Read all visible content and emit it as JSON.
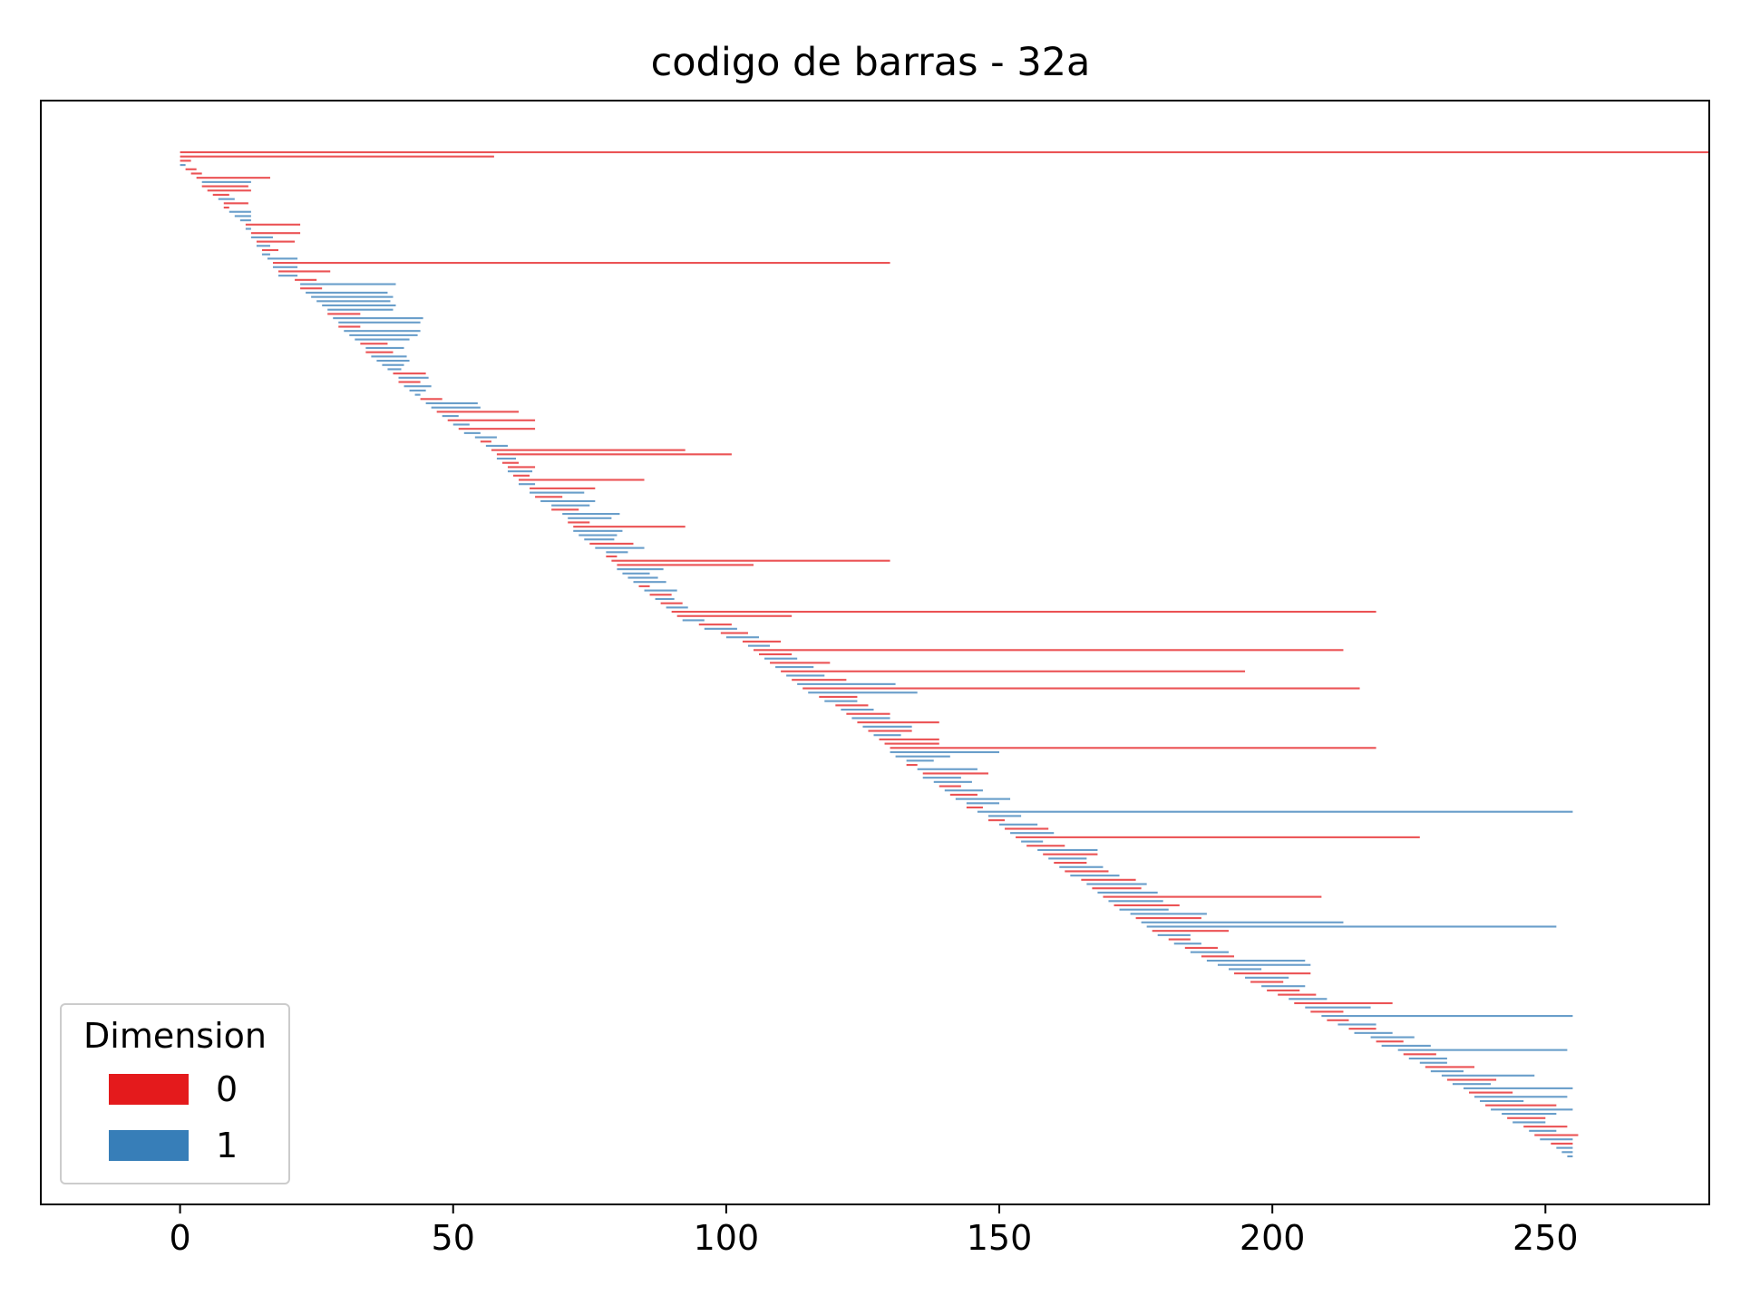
{
  "chart_data": {
    "type": "barcode",
    "title": "codigo de barras - 32a",
    "xlabel": "",
    "ylabel": "",
    "xlim": [
      -25.5,
      280
    ],
    "xticks": [
      0,
      50,
      100,
      150,
      200,
      250
    ],
    "xtick_labels": [
      "0",
      "50",
      "100",
      "150",
      "200",
      "250"
    ],
    "grid": false,
    "legend": {
      "title": "Dimension",
      "placement": "lower-left",
      "entries": [
        {
          "label": "0",
          "color": "#e41a1c"
        },
        {
          "label": "1",
          "color": "#377eb8"
        }
      ]
    },
    "series": [
      {
        "name": "0",
        "dimension": 0,
        "color": "#e41a1c",
        "intervals": [
          [
            0,
            280
          ],
          [
            0,
            57.5
          ],
          [
            0,
            2
          ],
          [
            1,
            3
          ],
          [
            2,
            4
          ],
          [
            3,
            16.5
          ],
          [
            4,
            12.5
          ],
          [
            5,
            13
          ],
          [
            6,
            9
          ],
          [
            8,
            12.5
          ],
          [
            8,
            9
          ],
          [
            12,
            22
          ],
          [
            13,
            22
          ],
          [
            14,
            21
          ],
          [
            15,
            18
          ],
          [
            17,
            130
          ],
          [
            18,
            27.5
          ],
          [
            21,
            25
          ],
          [
            22,
            26
          ],
          [
            27,
            33
          ],
          [
            29,
            33
          ],
          [
            33,
            38
          ],
          [
            34,
            39
          ],
          [
            39,
            45
          ],
          [
            40,
            44
          ],
          [
            44,
            48
          ],
          [
            47,
            62
          ],
          [
            49,
            65
          ],
          [
            51,
            65
          ],
          [
            55,
            57
          ],
          [
            57,
            92.5
          ],
          [
            58,
            101
          ],
          [
            59,
            62
          ],
          [
            60,
            65
          ],
          [
            61,
            64
          ],
          [
            62,
            85
          ],
          [
            64,
            76
          ],
          [
            65,
            70
          ],
          [
            68,
            73
          ],
          [
            71,
            75
          ],
          [
            72,
            92.5
          ],
          [
            75,
            83
          ],
          [
            78,
            80
          ],
          [
            79,
            130
          ],
          [
            80,
            105
          ],
          [
            84,
            86
          ],
          [
            86,
            90
          ],
          [
            88,
            92
          ],
          [
            90,
            219
          ],
          [
            91,
            112
          ],
          [
            95,
            101
          ],
          [
            99,
            104
          ],
          [
            103,
            110
          ],
          [
            105,
            213
          ],
          [
            106,
            112
          ],
          [
            108,
            119
          ],
          [
            110,
            195
          ],
          [
            112,
            122
          ],
          [
            114,
            216
          ],
          [
            117,
            124
          ],
          [
            120,
            126
          ],
          [
            122,
            130
          ],
          [
            124,
            139
          ],
          [
            126,
            134
          ],
          [
            128,
            139
          ],
          [
            129,
            139
          ],
          [
            130,
            219
          ],
          [
            133,
            135
          ],
          [
            136,
            148
          ],
          [
            139,
            143
          ],
          [
            141,
            146
          ],
          [
            144,
            147
          ],
          [
            148,
            151
          ],
          [
            151,
            159
          ],
          [
            153,
            227
          ],
          [
            155,
            162
          ],
          [
            158,
            168
          ],
          [
            160,
            166
          ],
          [
            162,
            170
          ],
          [
            165,
            175
          ],
          [
            167,
            176
          ],
          [
            169,
            209
          ],
          [
            171,
            183
          ],
          [
            175,
            187
          ],
          [
            178,
            192
          ],
          [
            181,
            185
          ],
          [
            184,
            190
          ],
          [
            187,
            193
          ],
          [
            193,
            207
          ],
          [
            196,
            202
          ],
          [
            199,
            205
          ],
          [
            201,
            208
          ],
          [
            204,
            222
          ],
          [
            207,
            213
          ],
          [
            210,
            214
          ],
          [
            214,
            219
          ],
          [
            219,
            224
          ],
          [
            224,
            230
          ],
          [
            228,
            237
          ],
          [
            232,
            241
          ],
          [
            236,
            244
          ],
          [
            239,
            252
          ],
          [
            243,
            250
          ],
          [
            246,
            254
          ],
          [
            248,
            256
          ],
          [
            251,
            255
          ]
        ]
      },
      {
        "name": "1",
        "dimension": 1,
        "color": "#377eb8",
        "intervals": [
          [
            0,
            1
          ],
          [
            4,
            13
          ],
          [
            7,
            10
          ],
          [
            9,
            13
          ],
          [
            10,
            13
          ],
          [
            11,
            13
          ],
          [
            12,
            13
          ],
          [
            13,
            17
          ],
          [
            14,
            16.5
          ],
          [
            15,
            16.5
          ],
          [
            16,
            21.5
          ],
          [
            17,
            21.5
          ],
          [
            18,
            21.5
          ],
          [
            22,
            39.5
          ],
          [
            23,
            38
          ],
          [
            24,
            39
          ],
          [
            25,
            38.5
          ],
          [
            26,
            39.5
          ],
          [
            27,
            39
          ],
          [
            28,
            44.5
          ],
          [
            29,
            44
          ],
          [
            30,
            44
          ],
          [
            31,
            43.5
          ],
          [
            32,
            42
          ],
          [
            34,
            41
          ],
          [
            35,
            41.5
          ],
          [
            36,
            42
          ],
          [
            37,
            41
          ],
          [
            38,
            40.5
          ],
          [
            40,
            45.5
          ],
          [
            41,
            46
          ],
          [
            42,
            45
          ],
          [
            43,
            44
          ],
          [
            45,
            54.5
          ],
          [
            46,
            55
          ],
          [
            48,
            51
          ],
          [
            50,
            53
          ],
          [
            52,
            55
          ],
          [
            54,
            58
          ],
          [
            56,
            60
          ],
          [
            58,
            61.5
          ],
          [
            60,
            64.5
          ],
          [
            62,
            65
          ],
          [
            64,
            74
          ],
          [
            66,
            76
          ],
          [
            68,
            75
          ],
          [
            70,
            80.5
          ],
          [
            71,
            79
          ],
          [
            72,
            81
          ],
          [
            73,
            80
          ],
          [
            74,
            79.5
          ],
          [
            76,
            85
          ],
          [
            78,
            82
          ],
          [
            80,
            88.5
          ],
          [
            81,
            86
          ],
          [
            82,
            87.5
          ],
          [
            83,
            89
          ],
          [
            85,
            91
          ],
          [
            87,
            90.5
          ],
          [
            89,
            93
          ],
          [
            92,
            96
          ],
          [
            96,
            102
          ],
          [
            100,
            106
          ],
          [
            104,
            108
          ],
          [
            107,
            113
          ],
          [
            109,
            116
          ],
          [
            111,
            118
          ],
          [
            113,
            131
          ],
          [
            115,
            135
          ],
          [
            118,
            124
          ],
          [
            121,
            127
          ],
          [
            123,
            130
          ],
          [
            125,
            134
          ],
          [
            127,
            132
          ],
          [
            130,
            150
          ],
          [
            131,
            141
          ],
          [
            133,
            138
          ],
          [
            135,
            146
          ],
          [
            136,
            143
          ],
          [
            138,
            145
          ],
          [
            140,
            147
          ],
          [
            142,
            152
          ],
          [
            144,
            150
          ],
          [
            146,
            255
          ],
          [
            148,
            154
          ],
          [
            150,
            157
          ],
          [
            152,
            160
          ],
          [
            154,
            158
          ],
          [
            157,
            168
          ],
          [
            159,
            166
          ],
          [
            161,
            169
          ],
          [
            163,
            172
          ],
          [
            166,
            177
          ],
          [
            168,
            179
          ],
          [
            170,
            180
          ],
          [
            172,
            181
          ],
          [
            174,
            188
          ],
          [
            176,
            213
          ],
          [
            177,
            252
          ],
          [
            179,
            185
          ],
          [
            182,
            187
          ],
          [
            185,
            192
          ],
          [
            188,
            206
          ],
          [
            190,
            207
          ],
          [
            192,
            198
          ],
          [
            195,
            203
          ],
          [
            198,
            206
          ],
          [
            203,
            210
          ],
          [
            206,
            218
          ],
          [
            209,
            255
          ],
          [
            212,
            219
          ],
          [
            215,
            222
          ],
          [
            218,
            226
          ],
          [
            220,
            229
          ],
          [
            223,
            254
          ],
          [
            225,
            232
          ],
          [
            227,
            232
          ],
          [
            229,
            235
          ],
          [
            231,
            248
          ],
          [
            233,
            240
          ],
          [
            235,
            255
          ],
          [
            237,
            254
          ],
          [
            238,
            246
          ],
          [
            240,
            255
          ],
          [
            242,
            252
          ],
          [
            244,
            250
          ],
          [
            247,
            252
          ],
          [
            249,
            255
          ],
          [
            252,
            255
          ],
          [
            253,
            255
          ],
          [
            254,
            255
          ]
        ]
      }
    ]
  }
}
